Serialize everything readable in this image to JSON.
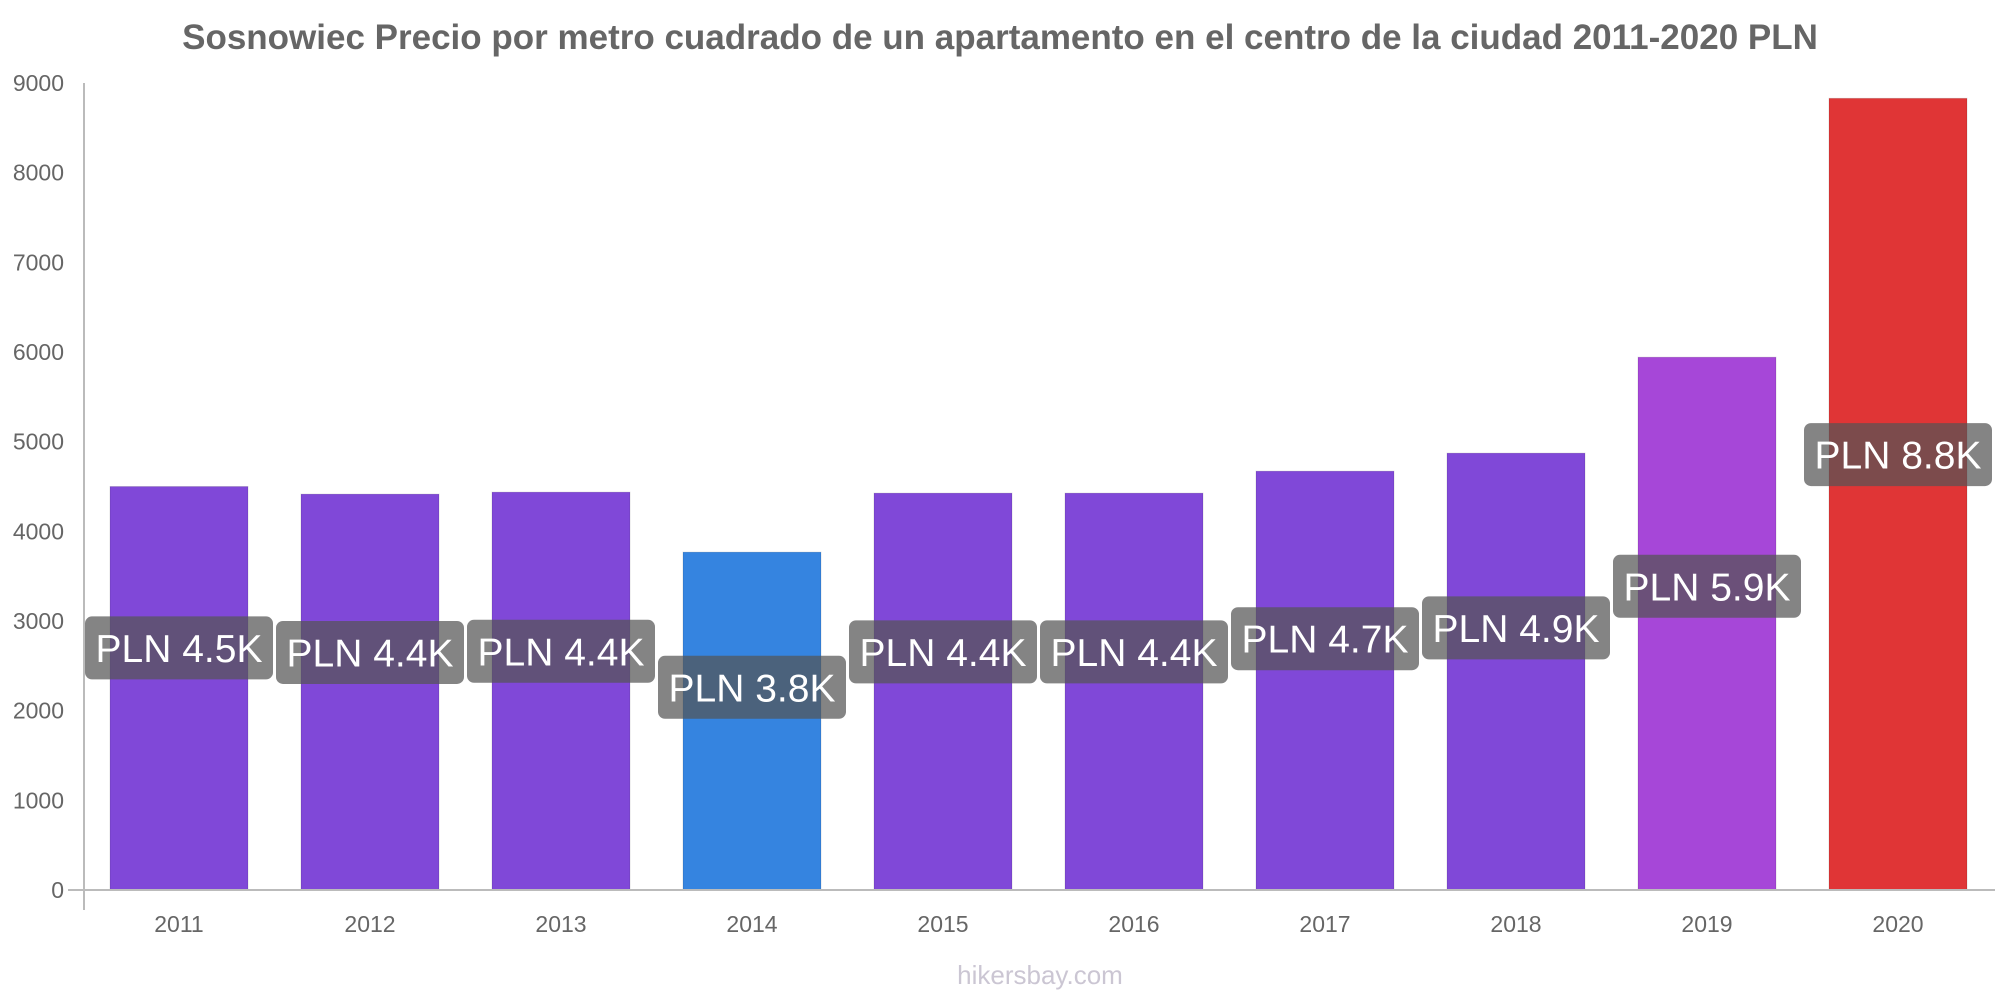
{
  "chart_data": {
    "type": "bar",
    "title": "Sosnowiec Precio por metro cuadrado de un apartamento en el centro de la ciudad 2011-2020 PLN",
    "xlabel": "",
    "ylabel": "",
    "ylim": [
      0,
      9000
    ],
    "yticks": [
      0,
      1000,
      2000,
      3000,
      4000,
      5000,
      6000,
      7000,
      8000,
      9000
    ],
    "grid": false,
    "legend": "none",
    "categories": [
      "2011",
      "2012",
      "2013",
      "2014",
      "2015",
      "2016",
      "2017",
      "2018",
      "2019",
      "2020"
    ],
    "values": [
      4500,
      4415,
      4437,
      3768,
      4426,
      4426,
      4671,
      4872,
      5942,
      8829
    ],
    "data_labels": [
      "PLN 4.5K",
      "PLN 4.4K",
      "PLN 4.4K",
      "PLN 3.8K",
      "PLN 4.4K",
      "PLN 4.4K",
      "PLN 4.7K",
      "PLN 4.9K",
      "PLN 5.9K",
      "PLN 8.8K"
    ],
    "bar_colors": [
      "#8048d8",
      "#8048d8",
      "#8048d8",
      "#3584e0",
      "#8048d8",
      "#8048d8",
      "#8048d8",
      "#8048d8",
      "#a647d8",
      "#e03536"
    ],
    "currency": "PLN"
  },
  "footer": {
    "source": "hikersbay.com"
  },
  "colors": {
    "title": "#666666",
    "axis": "#bbbbbb",
    "label_box": "#555555"
  }
}
